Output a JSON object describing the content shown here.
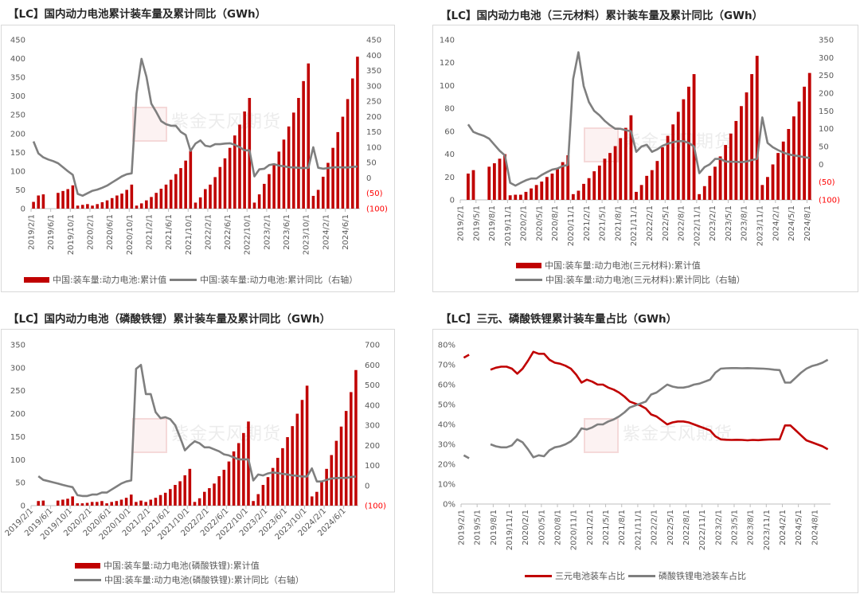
{
  "colors": {
    "bar": "#c00000",
    "line": "#7f7f7f",
    "negative_label": "#ff0000",
    "ternary": "#c00000",
    "lfp": "#7f7f7f"
  },
  "watermark": {
    "text": "紫金天风期货",
    "seal": "紫金天风"
  },
  "chart_data": [
    {
      "title": "【LC】国内动力电池累计装车量及累计同比（GWh）",
      "type": "bar+line",
      "categories": [
        "2019/2/1",
        "2019/3/1",
        "2019/4/1",
        "2019/5/1",
        "2019/6/1",
        "2019/7/1",
        "2019/8/1",
        "2019/9/1",
        "2019/10/1",
        "2019/11/1",
        "2019/12/1",
        "2020/1/1",
        "2020/2/1",
        "2020/3/1",
        "2020/4/1",
        "2020/5/1",
        "2020/6/1",
        "2020/7/1",
        "2020/8/1",
        "2020/9/1",
        "2020/10/1",
        "2020/11/1",
        "2020/12/1",
        "2021/1/1",
        "2021/2/1",
        "2021/3/1",
        "2021/4/1",
        "2021/5/1",
        "2021/6/1",
        "2021/7/1",
        "2021/8/1",
        "2021/9/1",
        "2021/10/1",
        "2021/11/1",
        "2021/12/1",
        "2022/1/1",
        "2022/2/1",
        "2022/3/1",
        "2022/4/1",
        "2022/5/1",
        "2022/6/1",
        "2022/7/1",
        "2022/8/1",
        "2022/9/1",
        "2022/10/1",
        "2022/11/1",
        "2022/12/1",
        "2023/1/1",
        "2023/2/1",
        "2023/3/1",
        "2023/4/1",
        "2023/5/1",
        "2023/6/1",
        "2023/7/1",
        "2023/8/1",
        "2023/9/1",
        "2023/10/1",
        "2023/11/1",
        "2023/12/1",
        "2024/1/1",
        "2024/2/1",
        "2024/3/1",
        "2024/4/1",
        "2024/5/1",
        "2024/6/1",
        "2024/7/1",
        "2024/8/1"
      ],
      "x_tick_labels": [
        "2019/2/1",
        "2019/6/1",
        "2019/10/1",
        "2020/2/1",
        "2020/6/1",
        "2020/10/1",
        "2021/2/1",
        "2021/6/1",
        "2021/10/1",
        "2022/2/1",
        "2022/6/1",
        "2022/10/1",
        "2023/2/1",
        "2023/6/1",
        "2023/10/1",
        "2024/2/1",
        "2024/6/1"
      ],
      "ylim": [
        0,
        450
      ],
      "y_ticks": [
        0,
        50,
        100,
        150,
        200,
        250,
        300,
        350,
        400,
        450
      ],
      "y2lim": [
        -100,
        450
      ],
      "y2_ticks": [
        -100,
        -50,
        0,
        50,
        100,
        150,
        200,
        250,
        300,
        350,
        400,
        450
      ],
      "series": [
        {
          "name": "中国:装车量:动力电池:累计值",
          "kind": "bar",
          "axis": "left",
          "values": [
            18,
            35,
            38,
            null,
            null,
            42,
            47,
            52,
            62,
            8,
            10,
            12,
            8,
            12,
            17,
            22,
            28,
            35,
            40,
            50,
            64,
            8,
            14,
            22,
            31,
            42,
            53,
            64,
            77,
            92,
            108,
            128,
            154,
            16,
            30,
            52,
            64,
            84,
            111,
            134,
            162,
            195,
            224,
            259,
            295,
            16,
            38,
            66,
            92,
            120,
            152,
            184,
            219,
            256,
            295,
            340,
            387,
            34,
            50,
            85,
            122,
            162,
            204,
            245,
            292,
            347,
            405
          ]
        },
        {
          "name": "中国:装车量:动力电池:累计同比（右轴）",
          "kind": "line",
          "axis": "right",
          "values": [
            119,
            80,
            67,
            60,
            55,
            48,
            35,
            22,
            10,
            -52,
            -58,
            -50,
            -42,
            -38,
            -32,
            -25,
            -15,
            -5,
            5,
            12,
            15,
            275,
            388,
            330,
            242,
            215,
            185,
            175,
            170,
            170,
            150,
            140,
            88,
            112,
            122,
            105,
            102,
            110,
            110,
            112,
            113,
            108,
            100,
            90,
            90,
            5,
            28,
            30,
            42,
            45,
            40,
            38,
            35,
            34,
            33,
            32,
            33,
            100,
            33,
            30,
            32,
            34,
            35,
            34,
            34,
            36,
            37
          ]
        }
      ],
      "legend": "bottom",
      "grid": false
    },
    {
      "title": "【LC】国内动力电池（三元材料）累计装车量及累计同比（GWh）",
      "type": "bar+line",
      "categories": [
        "2019/2/1",
        "2019/3/1",
        "2019/4/1",
        "2019/5/1",
        "2019/6/1",
        "2019/7/1",
        "2019/8/1",
        "2019/9/1",
        "2019/10/1",
        "2019/11/1",
        "2019/12/1",
        "2020/1/1",
        "2020/2/1",
        "2020/3/1",
        "2020/4/1",
        "2020/5/1",
        "2020/6/1",
        "2020/7/1",
        "2020/8/1",
        "2020/9/1",
        "2020/10/1",
        "2020/11/1",
        "2020/12/1",
        "2021/1/1",
        "2021/2/1",
        "2021/3/1",
        "2021/4/1",
        "2021/5/1",
        "2021/6/1",
        "2021/7/1",
        "2021/8/1",
        "2021/9/1",
        "2021/10/1",
        "2021/11/1",
        "2021/12/1",
        "2022/1/1",
        "2022/2/1",
        "2022/3/1",
        "2022/4/1",
        "2022/5/1",
        "2022/6/1",
        "2022/7/1",
        "2022/8/1",
        "2022/9/1",
        "2022/10/1",
        "2022/11/1",
        "2022/12/1",
        "2023/1/1",
        "2023/2/1",
        "2023/3/1",
        "2023/4/1",
        "2023/5/1",
        "2023/6/1",
        "2023/7/1",
        "2023/8/1",
        "2023/9/1",
        "2023/10/1",
        "2023/11/1",
        "2023/12/1",
        "2024/1/1",
        "2024/2/1",
        "2024/3/1",
        "2024/4/1",
        "2024/5/1",
        "2024/6/1",
        "2024/7/1",
        "2024/8/1"
      ],
      "x_tick_labels": [
        "2019/2/1",
        "2019/5/1",
        "2019/8/1",
        "2019/11/1",
        "2020/2/1",
        "2020/5/1",
        "2020/8/1",
        "2020/11/1",
        "2021/2/1",
        "2021/5/1",
        "2021/8/1",
        "2021/11/1",
        "2022/2/1",
        "2022/5/1",
        "2022/8/1",
        "2022/11/1",
        "2023/2/1",
        "2023/5/1",
        "2023/8/1",
        "2023/11/1",
        "2024/2/1",
        "2024/5/1",
        "2024/8/1"
      ],
      "ylim": [
        0,
        140
      ],
      "y_ticks": [
        0,
        20,
        40,
        60,
        80,
        100,
        120,
        140
      ],
      "y2lim": [
        -100,
        350
      ],
      "y2_ticks": [
        -100,
        -50,
        0,
        50,
        100,
        150,
        200,
        250,
        300,
        350
      ],
      "series": [
        {
          "name": "中国:装车量:动力电池(三元材料):累计值",
          "kind": "bar",
          "axis": "left",
          "values": [
            null,
            23,
            26,
            null,
            null,
            29,
            32,
            36,
            40,
            4,
            4.5,
            4.5,
            7,
            10,
            13,
            16,
            20,
            23,
            27,
            33,
            39,
            5,
            8,
            14,
            19,
            25,
            30,
            36,
            41,
            47,
            54,
            63,
            74,
            7,
            13,
            21,
            26,
            34,
            46,
            56,
            66,
            77,
            88,
            99,
            110,
            5,
            12,
            21,
            29,
            38,
            48,
            58,
            69,
            82,
            94,
            110,
            126,
            13,
            20,
            31,
            41,
            51,
            62,
            73,
            86,
            99,
            111
          ]
        },
        {
          "name": "中国:装车量:动力电池(三元材料):累计同比（右轴）",
          "kind": "line",
          "axis": "right",
          "values": [
            null,
            112,
            91,
            85,
            80,
            72,
            55,
            38,
            25,
            -52,
            -60,
            -52,
            -45,
            -40,
            -40,
            -30,
            -22,
            -15,
            -12,
            -5,
            -2,
            240,
            315,
            220,
            175,
            150,
            138,
            122,
            110,
            100,
            100,
            96,
            93,
            35,
            50,
            55,
            35,
            42,
            52,
            58,
            62,
            65,
            65,
            60,
            50,
            -25,
            -8,
            0,
            15,
            15,
            8,
            7,
            7,
            6,
            8,
            12,
            15,
            132,
            60,
            48,
            40,
            33,
            28,
            25,
            23,
            20,
            18
          ]
        }
      ],
      "legend": "bottom",
      "grid": false
    },
    {
      "title": "【LC】国内动力电池（磷酸铁锂）累计装车量及累计同比（GWh）",
      "type": "bar+line",
      "categories": [
        "2019/2/1",
        "2019/3/1",
        "2019/4/1",
        "2019/5/1",
        "2019/6/1",
        "2019/7/1",
        "2019/8/1",
        "2019/9/1",
        "2019/10/1",
        "2019/11/1",
        "2019/12/1",
        "2020/1/1",
        "2020/2/1",
        "2020/3/1",
        "2020/4/1",
        "2020/5/1",
        "2020/6/1",
        "2020/7/1",
        "2020/8/1",
        "2020/9/1",
        "2020/10/1",
        "2020/11/1",
        "2020/12/1",
        "2021/1/1",
        "2021/2/1",
        "2021/3/1",
        "2021/4/1",
        "2021/5/1",
        "2021/6/1",
        "2021/7/1",
        "2021/8/1",
        "2021/9/1",
        "2021/10/1",
        "2021/11/1",
        "2021/12/1",
        "2022/1/1",
        "2022/2/1",
        "2022/3/1",
        "2022/4/1",
        "2022/5/1",
        "2022/6/1",
        "2022/7/1",
        "2022/8/1",
        "2022/9/1",
        "2022/10/1",
        "2022/11/1",
        "2022/12/1",
        "2023/1/1",
        "2023/2/1",
        "2023/3/1",
        "2023/4/1",
        "2023/5/1",
        "2023/6/1",
        "2023/7/1",
        "2023/8/1",
        "2023/9/1",
        "2023/10/1",
        "2023/11/1",
        "2023/12/1",
        "2024/1/1",
        "2024/2/1",
        "2024/3/1",
        "2024/4/1",
        "2024/5/1",
        "2024/6/1",
        "2024/7/1",
        "2024/8/1"
      ],
      "x_tick_labels": [
        "2019/2/1",
        "2019/6/1",
        "2019/10/1",
        "2020/2/1",
        "2020/6/1",
        "2020/10/1",
        "2021/2/1",
        "2021/6/1",
        "2021/10/1",
        "2022/2/1",
        "2022/6/1",
        "2022/10/1",
        "2023/2/1",
        "2023/6/1",
        "2023/10/1",
        "2024/2/1",
        "2024/6/1"
      ],
      "ylim": [
        0,
        350
      ],
      "y_ticks": [
        0,
        50,
        100,
        150,
        200,
        250,
        300,
        350
      ],
      "y2lim": [
        -100,
        700
      ],
      "y2_ticks": [
        -100,
        0,
        100,
        200,
        300,
        400,
        500,
        600,
        700
      ],
      "series": [
        {
          "name": "中国:装车量:动力电池(磷酸铁锂):累计值",
          "kind": "bar",
          "axis": "left",
          "values": [
            null,
            10,
            11,
            null,
            null,
            11,
            13,
            15,
            20,
            5,
            5,
            6,
            8,
            8,
            10,
            5,
            8,
            10,
            13,
            17,
            24,
            8,
            11,
            8,
            13,
            17,
            23,
            28,
            36,
            45,
            53,
            66,
            80,
            8,
            16,
            30,
            38,
            48,
            64,
            78,
            96,
            118,
            136,
            158,
            183,
            10,
            25,
            45,
            62,
            82,
            104,
            125,
            149,
            173,
            200,
            230,
            261,
            20,
            30,
            52,
            80,
            110,
            141,
            172,
            206,
            247,
            295
          ]
        },
        {
          "name": "中国:装车量:动力电池(磷酸铁锂):累计同比（右轴）",
          "kind": "line",
          "axis": "right",
          "values": [
            null,
            46,
            28,
            22,
            16,
            10,
            3,
            -3,
            -8,
            -48,
            -52,
            -52,
            -45,
            -45,
            -35,
            -35,
            -20,
            -5,
            10,
            20,
            25,
            580,
            600,
            455,
            455,
            365,
            335,
            340,
            330,
            300,
            240,
            175,
            200,
            220,
            210,
            190,
            190,
            180,
            170,
            155,
            150,
            140,
            130,
            130,
            130,
            25,
            55,
            50,
            60,
            65,
            62,
            58,
            55,
            50,
            48,
            45,
            45,
            85,
            20,
            20,
            28,
            35,
            37,
            38,
            38,
            42,
            45
          ]
        }
      ],
      "legend": "bottom",
      "grid": false
    },
    {
      "title": "【LC】三元、磷酸铁锂累计装车量占比（GWh）",
      "type": "line",
      "categories": [
        "2019/2/1",
        "2019/3/1",
        "2019/4/1",
        "2019/5/1",
        "2019/6/1",
        "2019/7/1",
        "2019/8/1",
        "2019/9/1",
        "2019/10/1",
        "2019/11/1",
        "2019/12/1",
        "2020/1/1",
        "2020/2/1",
        "2020/3/1",
        "2020/4/1",
        "2020/5/1",
        "2020/6/1",
        "2020/7/1",
        "2020/8/1",
        "2020/9/1",
        "2020/10/1",
        "2020/11/1",
        "2020/12/1",
        "2021/1/1",
        "2021/2/1",
        "2021/3/1",
        "2021/4/1",
        "2021/5/1",
        "2021/6/1",
        "2021/7/1",
        "2021/8/1",
        "2021/9/1",
        "2021/10/1",
        "2021/11/1",
        "2021/12/1",
        "2022/1/1",
        "2022/2/1",
        "2022/3/1",
        "2022/4/1",
        "2022/5/1",
        "2022/6/1",
        "2022/7/1",
        "2022/8/1",
        "2022/9/1",
        "2022/10/1",
        "2022/11/1",
        "2022/12/1",
        "2023/1/1",
        "2023/2/1",
        "2023/3/1",
        "2023/4/1",
        "2023/5/1",
        "2023/6/1",
        "2023/7/1",
        "2023/8/1",
        "2023/9/1",
        "2023/10/1",
        "2023/11/1",
        "2023/12/1",
        "2024/1/1",
        "2024/2/1",
        "2024/3/1",
        "2024/4/1",
        "2024/5/1",
        "2024/6/1",
        "2024/7/1",
        "2024/8/1",
        "2024/9/1",
        "2024/10/1"
      ],
      "x_tick_labels": [
        "2019/2/1",
        "2019/5/1",
        "2019/8/1",
        "2019/11/1",
        "2020/2/1",
        "2020/5/1",
        "2020/8/1",
        "2020/11/1",
        "2021/2/1",
        "2021/5/1",
        "2021/8/1",
        "2021/11/1",
        "2022/2/1",
        "2022/5/1",
        "2022/8/1",
        "2022/11/1",
        "2023/2/1",
        "2023/5/1",
        "2023/8/1",
        "2023/11/1",
        "2024/2/1",
        "2024/5/1",
        "2024/8/1"
      ],
      "ylim": [
        0,
        80
      ],
      "y_ticks": [
        0,
        10,
        20,
        30,
        40,
        50,
        60,
        70,
        80
      ],
      "y_unit": "%",
      "series": [
        {
          "name": "三元电池装车占比",
          "kind": "line",
          "axis": "left",
          "color": "#c00000",
          "values": [
            73.5,
            75,
            null,
            null,
            null,
            67.5,
            68.5,
            69,
            69,
            68,
            65.5,
            68,
            72,
            76.5,
            75.5,
            75.5,
            72.5,
            71,
            70.5,
            69.5,
            68,
            65,
            61,
            62.5,
            61.5,
            60,
            60,
            58.5,
            57.5,
            56,
            54,
            51.5,
            50.5,
            49.5,
            48,
            45,
            44,
            42,
            40,
            41,
            41.5,
            41.5,
            41,
            40,
            39,
            38,
            37,
            34,
            32.5,
            32.3,
            32.2,
            32.3,
            32.2,
            32,
            32.2,
            32.1,
            32.3,
            32.4,
            32.5,
            32.5,
            39.5,
            39.5,
            37,
            34.5,
            32,
            31,
            30,
            29,
            27.5
          ]
        },
        {
          "name": "磷酸铁锂电池装车占比",
          "kind": "line",
          "axis": "left",
          "color": "#7f7f7f",
          "values": [
            24.5,
            23,
            null,
            null,
            null,
            30,
            29,
            28.5,
            28.5,
            29.5,
            32.5,
            31,
            27.5,
            23.5,
            24.5,
            24,
            27,
            28.5,
            29,
            30,
            31.5,
            34,
            38,
            37.5,
            38.5,
            40,
            40,
            41.5,
            42.5,
            44,
            46,
            48.5,
            49.5,
            50.5,
            51.5,
            55,
            56,
            58,
            60,
            59,
            58.5,
            58.5,
            59,
            60,
            60.5,
            61.5,
            62.5,
            66,
            68,
            68.2,
            68.3,
            68.3,
            68.2,
            68.3,
            68.2,
            68.1,
            68,
            67.8,
            67.5,
            67.3,
            61,
            61,
            63.5,
            66,
            68,
            69.3,
            70,
            71,
            72.5
          ]
        }
      ],
      "legend": "bottom",
      "grid": false
    }
  ]
}
